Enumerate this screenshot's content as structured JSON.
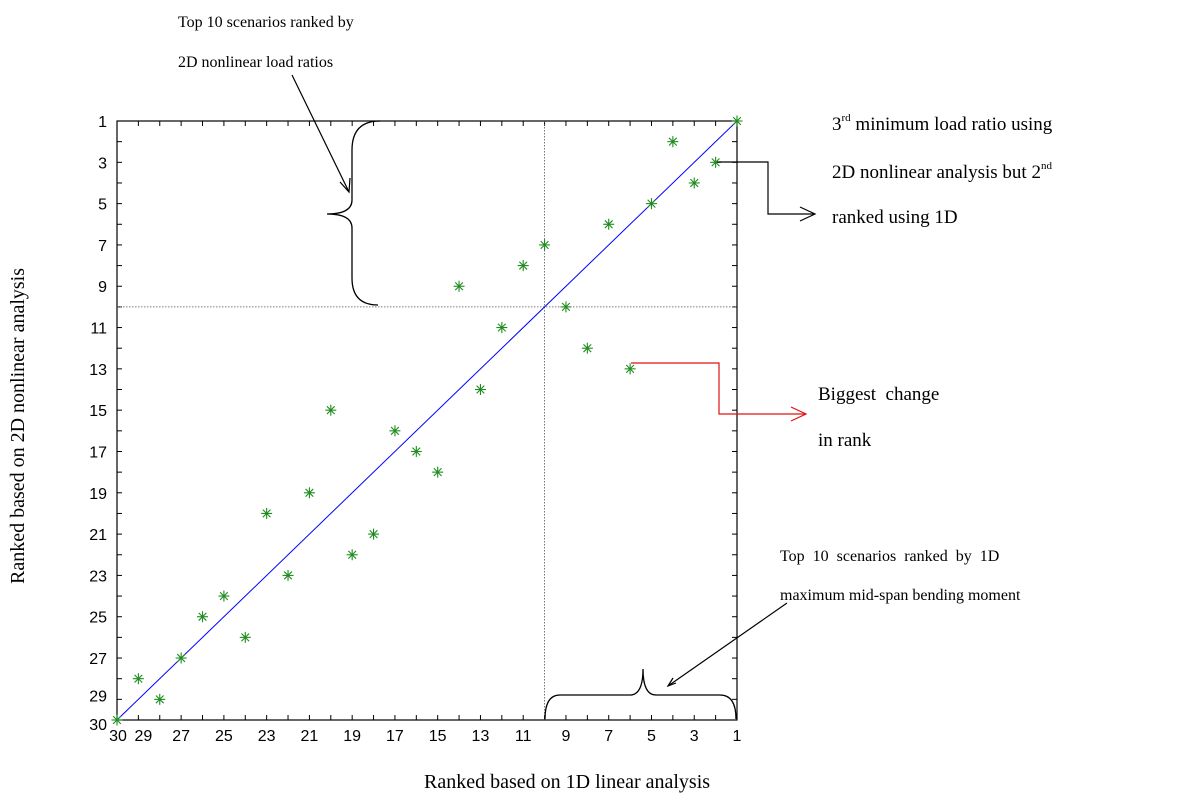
{
  "chart_data": {
    "type": "scatter",
    "title": "",
    "xlabel": "Ranked based on 1D linear analysis",
    "ylabel": "Ranked based on 2D nonlinear analysis",
    "xlim": [
      30,
      1
    ],
    "ylim": [
      1,
      30
    ],
    "x_reversed": true,
    "y_reversed": true,
    "x_tick_labels": [
      "30",
      "29",
      "27",
      "25",
      "23",
      "21",
      "19",
      "17",
      "15",
      "13",
      "11",
      "9",
      "7",
      "5",
      "3",
      "1"
    ],
    "y_tick_labels": [
      "1",
      "3",
      "5",
      "7",
      "9",
      "11",
      "13",
      "15",
      "17",
      "19",
      "21",
      "23",
      "25",
      "27",
      "29",
      "30"
    ],
    "reference_lines": {
      "x": 10,
      "y": 10
    },
    "series": [
      {
        "marker": "asterisk",
        "color": "#1e8c1e",
        "points": [
          {
            "x": 1,
            "y": 1
          },
          {
            "x": 4,
            "y": 2
          },
          {
            "x": 2,
            "y": 3
          },
          {
            "x": 3,
            "y": 4
          },
          {
            "x": 5,
            "y": 5
          },
          {
            "x": 7,
            "y": 6
          },
          {
            "x": 10,
            "y": 7
          },
          {
            "x": 11,
            "y": 8
          },
          {
            "x": 14,
            "y": 9
          },
          {
            "x": 9,
            "y": 10
          },
          {
            "x": 12,
            "y": 11
          },
          {
            "x": 8,
            "y": 12
          },
          {
            "x": 6,
            "y": 13
          },
          {
            "x": 13,
            "y": 14
          },
          {
            "x": 20,
            "y": 15
          },
          {
            "x": 17,
            "y": 16
          },
          {
            "x": 16,
            "y": 17
          },
          {
            "x": 15,
            "y": 18
          },
          {
            "x": 21,
            "y": 19
          },
          {
            "x": 23,
            "y": 20
          },
          {
            "x": 18,
            "y": 21
          },
          {
            "x": 19,
            "y": 22
          },
          {
            "x": 22,
            "y": 23
          },
          {
            "x": 25,
            "y": 24
          },
          {
            "x": 26,
            "y": 25
          },
          {
            "x": 24,
            "y": 26
          },
          {
            "x": 27,
            "y": 27
          },
          {
            "x": 29,
            "y": 28
          },
          {
            "x": 28,
            "y": 29
          },
          {
            "x": 30,
            "y": 30
          }
        ]
      },
      {
        "type": "line",
        "color": "#0000ff",
        "x": [
          1,
          30
        ],
        "y": [
          1,
          30
        ]
      }
    ],
    "annotations": {
      "top_left_line1": "Top 10 scenarios ranked by",
      "top_left_line2": "2D nonlinear load ratios",
      "right_top_line1_pre": "3",
      "right_top_line1_sup": "rd",
      "right_top_line1_post": " minimum load ratio using",
      "right_top_line2_pre": "2D nonlinear analysis but 2",
      "right_top_line2_sup": "nd",
      "right_top_line3": "ranked using 1D",
      "biggest_line1": "Biggest  change",
      "biggest_line2": "in rank",
      "bottom_right_line1": "Top  10  scenarios  ranked  by  1D",
      "bottom_right_line2": "maximum mid-span bending moment"
    }
  }
}
